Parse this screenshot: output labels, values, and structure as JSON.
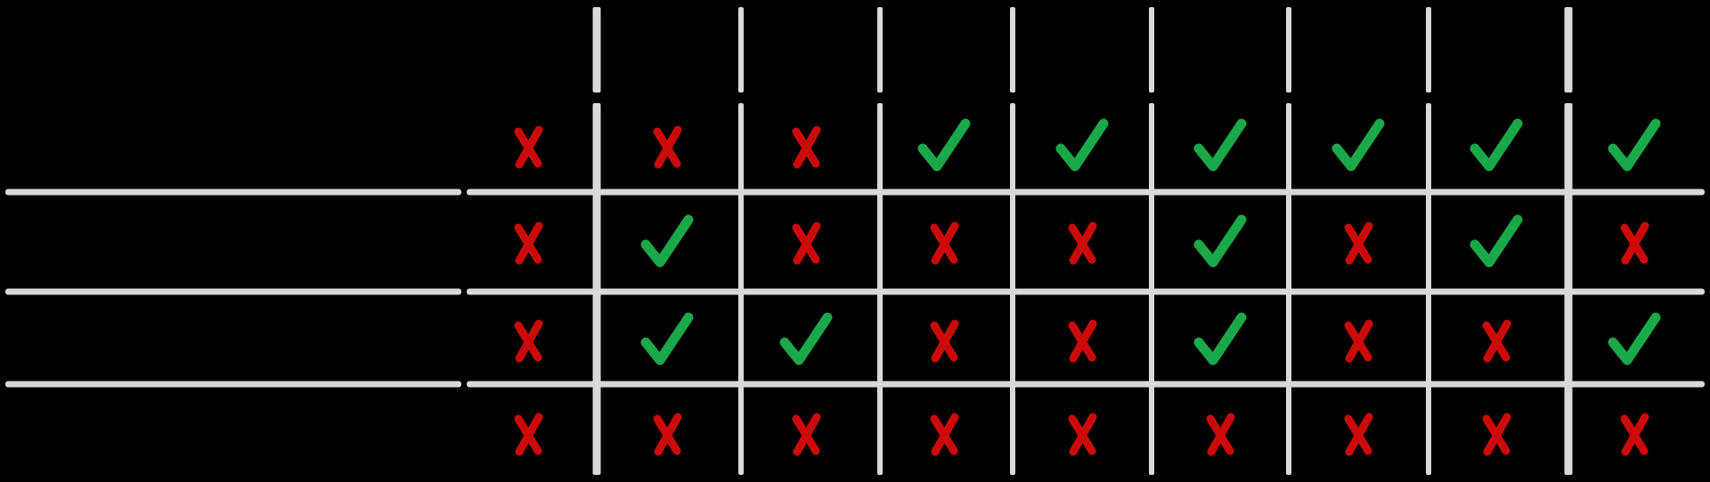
{
  "colors": {
    "background": "#000000",
    "grid_line": "#d9d9d9",
    "check": "#1aa84a",
    "cross": "#cc0a0a"
  },
  "icons": {
    "true": "check-icon",
    "false": "cross-icon"
  },
  "matrix": {
    "rows": [
      [
        false,
        false,
        false,
        true,
        true,
        true,
        true,
        true,
        true
      ],
      [
        false,
        true,
        false,
        false,
        false,
        true,
        false,
        true,
        false
      ],
      [
        false,
        true,
        true,
        false,
        false,
        true,
        false,
        false,
        true
      ],
      [
        false,
        false,
        false,
        false,
        false,
        false,
        false,
        false,
        false
      ]
    ]
  }
}
